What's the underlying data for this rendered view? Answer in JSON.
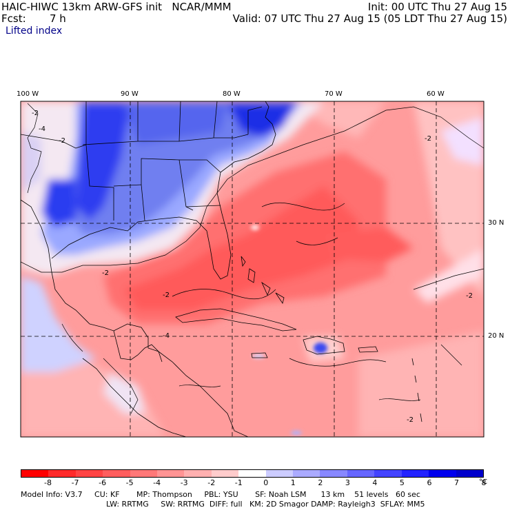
{
  "header": {
    "model_title": "HAIC-HIWC 13km ARW-GFS init   NCAR/MMM",
    "init": "Init: 00 UTC Thu 27 Aug 15",
    "fcst_label": "Fcst:",
    "fcst_value": "7 h",
    "valid": "Valid: 07 UTC Thu 27 Aug 15 (05 LDT Thu 27 Aug 15)",
    "field_name": "Lifted index"
  },
  "map": {
    "lon_labels": [
      "100 W",
      "90 W",
      "80 W",
      "70 W",
      "60 W"
    ],
    "lat_labels": [
      "30 N",
      "20 N"
    ],
    "contour_labels": [
      "-2",
      "-4",
      "-2",
      "-2",
      "-2",
      "-2",
      "-2",
      "-4",
      "-2"
    ],
    "colors": {
      "land_line": "#000000",
      "grid_line": "#000000"
    }
  },
  "colorbar": {
    "colors": [
      "#ff0000",
      "#ff2a2a",
      "#ff4444",
      "#ff5e5e",
      "#ff7878",
      "#ff9494",
      "#ffb0b0",
      "#ffcccc",
      "#ffffff",
      "#ccccff",
      "#aaaaff",
      "#8888ff",
      "#6666ff",
      "#4444ff",
      "#2222ff",
      "#0000ee",
      "#0000cc"
    ],
    "labels": [
      "-8",
      "-7",
      "-6",
      "-5",
      "-4",
      "-3",
      "-2",
      "-1",
      "0",
      "1",
      "2",
      "3",
      "4",
      "5",
      "6",
      "7",
      "8"
    ],
    "unit": "°C"
  },
  "model_info": {
    "line1": "Model Info: V3.7     CU: KF       MP: Thompson     PBL: YSU       SF: Noah LSM      13 km    51 levels   60 sec",
    "line2": "LW: RRTMG     SW: RRTMG  DIFF: full   KM: 2D Smagor DAMP: Rayleigh3  SFLAY: MM5"
  }
}
